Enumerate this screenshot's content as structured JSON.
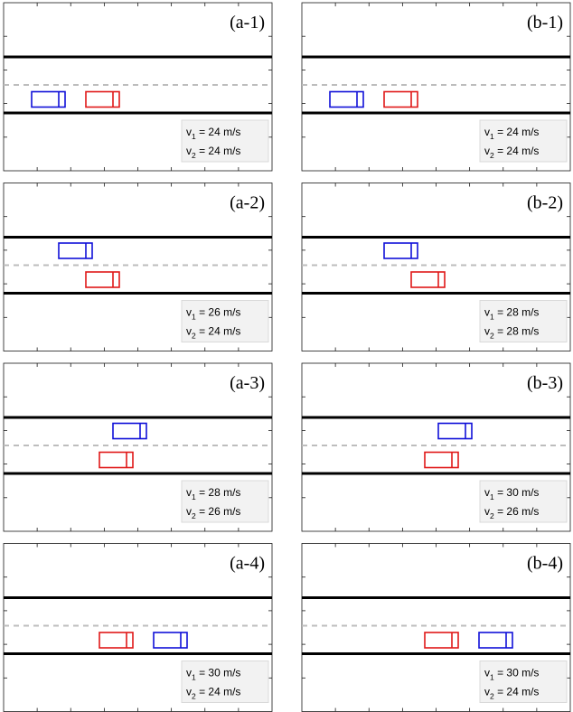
{
  "colors": {
    "vehicle_1": "#1010d8",
    "vehicle_2": "#e01818",
    "road_edge": "#000000",
    "center_line": "#bdbdbd",
    "legend_bg": "#f2f2f2"
  },
  "panels": [
    {
      "label": "(a-1)",
      "v1": "24 m/s",
      "v2": "24 m/s",
      "car1": {
        "lane": "lower",
        "slot": 0
      },
      "car2": {
        "lane": "lower",
        "slot": 2
      }
    },
    {
      "label": "(b-1)",
      "v1": "24 m/s",
      "v2": "24 m/s",
      "car1": {
        "lane": "lower",
        "slot": 0
      },
      "car2": {
        "lane": "lower",
        "slot": 2
      }
    },
    {
      "label": "(a-2)",
      "v1": "26 m/s",
      "v2": "24 m/s",
      "car1": {
        "lane": "upper",
        "slot": 1
      },
      "car2": {
        "lane": "lower",
        "slot": 2
      }
    },
    {
      "label": "(b-2)",
      "v1": "28 m/s",
      "v2": "28 m/s",
      "car1": {
        "lane": "upper",
        "slot": 2
      },
      "car2": {
        "lane": "lower",
        "slot": 3
      }
    },
    {
      "label": "(a-3)",
      "v1": "28 m/s",
      "v2": "26 m/s",
      "car1": {
        "lane": "upper",
        "slot": 3
      },
      "car2": {
        "lane": "lower",
        "slot": 2.5
      }
    },
    {
      "label": "(b-3)",
      "v1": "30 m/s",
      "v2": "26 m/s",
      "car1": {
        "lane": "upper",
        "slot": 4
      },
      "car2": {
        "lane": "lower",
        "slot": 3.5
      }
    },
    {
      "label": "(a-4)",
      "v1": "30 m/s",
      "v2": "24 m/s",
      "car1": {
        "lane": "lower",
        "slot": 4.5
      },
      "car2": {
        "lane": "lower",
        "slot": 2.5
      }
    },
    {
      "label": "(b-4)",
      "v1": "30 m/s",
      "v2": "24 m/s",
      "car1": {
        "lane": "lower",
        "slot": 5.5
      },
      "car2": {
        "lane": "lower",
        "slot": 3.5
      }
    }
  ]
}
